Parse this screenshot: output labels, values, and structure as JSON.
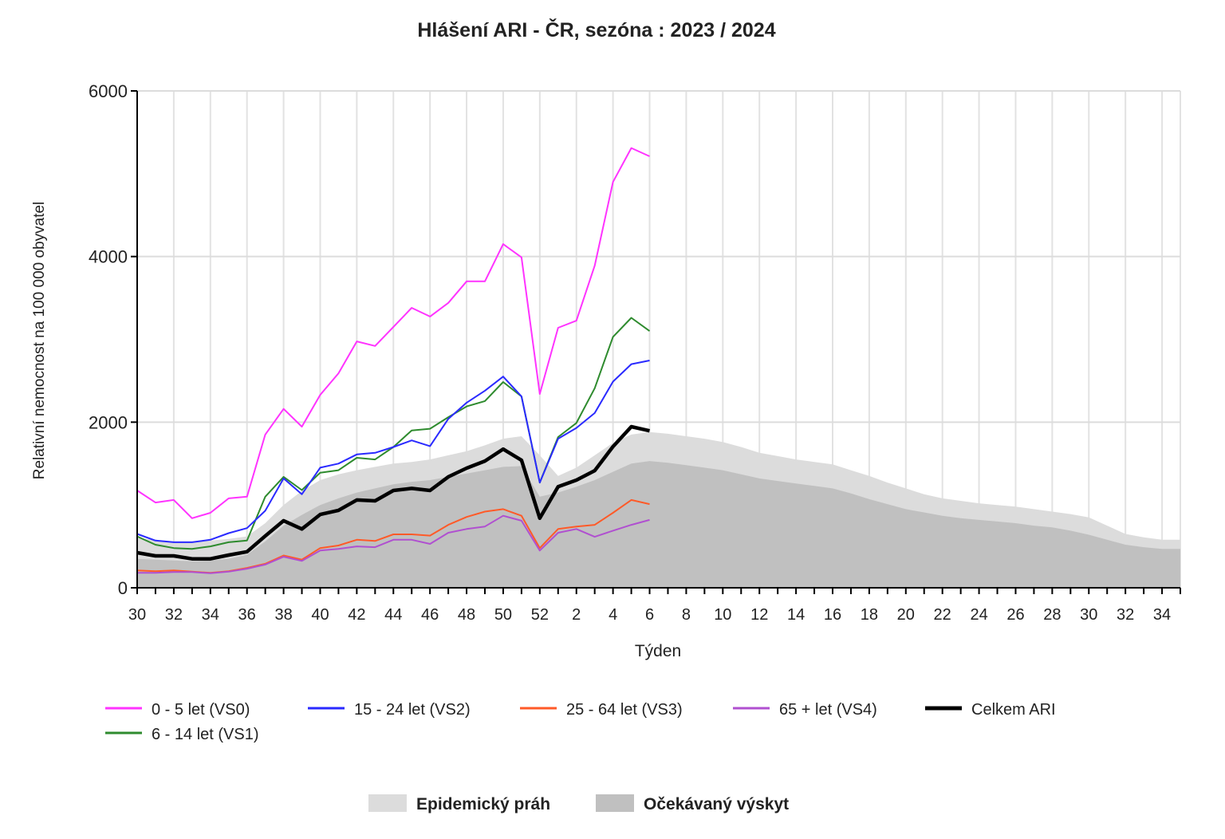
{
  "chart_data": {
    "type": "line",
    "title": "Hlášení ARI - ČR, sezóna : 2023 / 2024",
    "xlabel": "Týden",
    "ylabel": "Relativní nemocnost na 100 000 obyvatel",
    "ylim": [
      0,
      6000
    ],
    "yticks": [
      0,
      2000,
      4000,
      6000
    ],
    "grid": true,
    "weeks": [
      30,
      31,
      32,
      33,
      34,
      35,
      36,
      37,
      38,
      39,
      40,
      41,
      42,
      43,
      44,
      45,
      46,
      47,
      48,
      49,
      50,
      51,
      52,
      1,
      2,
      3,
      4,
      5,
      6,
      7,
      8,
      9,
      10,
      11,
      12,
      13,
      14,
      15,
      16,
      17,
      18,
      19,
      20,
      21,
      22,
      23,
      24,
      25,
      26,
      27,
      28,
      29,
      30,
      31,
      32,
      33,
      34,
      35
    ],
    "xtick_labels": [
      "30",
      "32",
      "34",
      "36",
      "38",
      "40",
      "42",
      "44",
      "46",
      "48",
      "50",
      "52",
      "2",
      "4",
      "6",
      "8",
      "10",
      "12",
      "14",
      "16",
      "18",
      "20",
      "22",
      "24",
      "26",
      "28",
      "30",
      "32",
      "34"
    ],
    "areas": [
      {
        "name": "Epidemický práh",
        "color": "#dcdcdc",
        "values": [
          600,
          580,
          560,
          560,
          570,
          590,
          620,
          780,
          1000,
          1170,
          1300,
          1370,
          1420,
          1460,
          1500,
          1520,
          1550,
          1600,
          1650,
          1720,
          1800,
          1830,
          1600,
          1350,
          1450,
          1600,
          1750,
          1850,
          1880,
          1860,
          1830,
          1800,
          1760,
          1700,
          1630,
          1590,
          1550,
          1520,
          1490,
          1420,
          1350,
          1270,
          1200,
          1130,
          1080,
          1050,
          1020,
          1000,
          980,
          950,
          920,
          890,
          850,
          750,
          650,
          610,
          580,
          580
        ]
      },
      {
        "name": "Očekávaný výskyt",
        "color": "#c0c0c0",
        "values": [
          350,
          340,
          330,
          320,
          330,
          350,
          400,
          560,
          750,
          880,
          1000,
          1080,
          1150,
          1200,
          1250,
          1280,
          1300,
          1340,
          1380,
          1420,
          1460,
          1470,
          1100,
          1150,
          1220,
          1300,
          1400,
          1500,
          1530,
          1510,
          1480,
          1450,
          1420,
          1370,
          1320,
          1290,
          1260,
          1230,
          1200,
          1140,
          1070,
          1010,
          950,
          910,
          870,
          840,
          820,
          800,
          780,
          750,
          730,
          690,
          640,
          580,
          520,
          490,
          470,
          470
        ]
      }
    ],
    "series": [
      {
        "name": "0 - 5 let (VS0)",
        "color": "#ff33ff",
        "width": 2,
        "values": [
          1175,
          1030,
          1060,
          840,
          905,
          1080,
          1100,
          1850,
          2160,
          1945,
          2330,
          2590,
          2975,
          2920,
          3150,
          3380,
          3275,
          3440,
          3700,
          3700,
          4150,
          3990,
          2340,
          3140,
          3225,
          3890,
          4900,
          5310,
          5210
        ]
      },
      {
        "name": "6 - 14 let (VS1)",
        "color": "#2e8b2e",
        "width": 2,
        "values": [
          620,
          520,
          480,
          470,
          500,
          550,
          570,
          1100,
          1340,
          1180,
          1390,
          1420,
          1570,
          1550,
          1700,
          1900,
          1920,
          2060,
          2190,
          2255,
          2485,
          2310,
          1270,
          1820,
          1990,
          2410,
          3030,
          3260,
          3100
        ]
      },
      {
        "name": "15 - 24 let (VS2)",
        "color": "#2a2aff",
        "width": 2,
        "values": [
          650,
          570,
          550,
          550,
          580,
          660,
          720,
          930,
          1320,
          1130,
          1450,
          1500,
          1610,
          1630,
          1700,
          1780,
          1710,
          2040,
          2235,
          2380,
          2550,
          2310,
          1270,
          1800,
          1930,
          2110,
          2490,
          2700,
          2745
        ]
      },
      {
        "name": "25 - 64 let (VS3)",
        "color": "#ff5a28",
        "width": 2,
        "values": [
          210,
          200,
          210,
          195,
          180,
          200,
          240,
          290,
          390,
          340,
          480,
          510,
          580,
          565,
          645,
          645,
          630,
          760,
          855,
          920,
          950,
          870,
          480,
          710,
          740,
          760,
          905,
          1060,
          1010
        ]
      },
      {
        "name": "65 + let (VS4)",
        "color": "#b050d0",
        "width": 2,
        "values": [
          180,
          180,
          190,
          190,
          175,
          195,
          230,
          280,
          375,
          325,
          450,
          470,
          500,
          490,
          580,
          580,
          530,
          665,
          710,
          740,
          870,
          810,
          450,
          665,
          710,
          615,
          690,
          760,
          820
        ]
      },
      {
        "name": "Celkem ARI",
        "color": "#000000",
        "width": 4.5,
        "values": [
          424,
          385,
          385,
          350,
          350,
          395,
          435,
          625,
          810,
          710,
          885,
          935,
          1060,
          1050,
          1175,
          1200,
          1175,
          1340,
          1445,
          1530,
          1675,
          1540,
          840,
          1220,
          1300,
          1415,
          1705,
          1945,
          1895
        ]
      }
    ],
    "legend_placement": "bottom"
  }
}
